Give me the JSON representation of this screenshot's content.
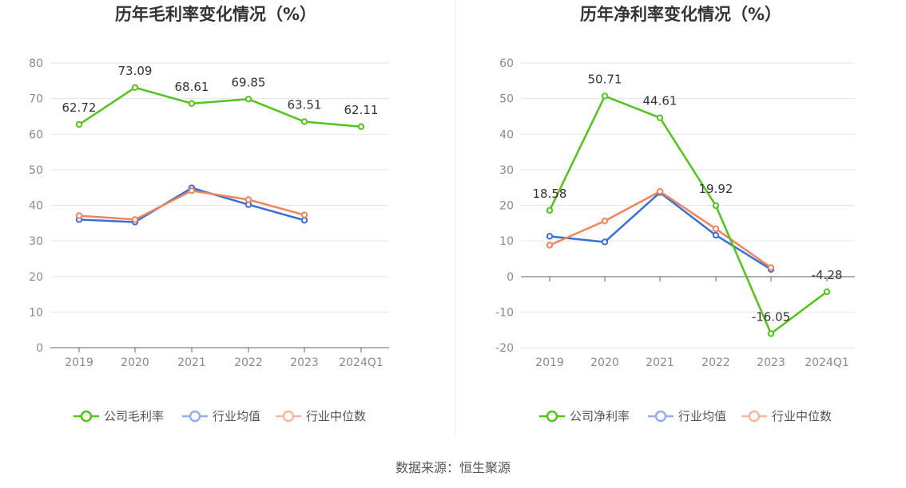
{
  "source_label": "数据来源：恒生聚源",
  "chart_data": [
    {
      "type": "line",
      "title": "历年毛利率变化情况（%）",
      "categories": [
        "2019",
        "2020",
        "2021",
        "2022",
        "2023",
        "2024Q1"
      ],
      "ylim": [
        0,
        80
      ],
      "yticks": [
        0,
        10,
        20,
        30,
        40,
        50,
        60,
        70,
        80
      ],
      "grid": true,
      "legend": "bottom",
      "series": [
        {
          "name": "公司毛利率",
          "color": "#52c41a",
          "values": [
            62.72,
            73.09,
            68.61,
            69.85,
            63.51,
            62.11
          ],
          "show_labels": true
        },
        {
          "name": "行业均值",
          "color": "#3b6fd8",
          "values": [
            36.0,
            35.3,
            44.9,
            40.2,
            35.8,
            null
          ],
          "show_labels": false
        },
        {
          "name": "行业中位数",
          "color": "#f0845a",
          "values": [
            37.1,
            36.0,
            44.1,
            41.6,
            37.3,
            null
          ],
          "show_labels": false
        }
      ]
    },
    {
      "type": "line",
      "title": "历年净利率变化情况（%）",
      "categories": [
        "2019",
        "2020",
        "2021",
        "2022",
        "2023",
        "2024Q1"
      ],
      "ylim": [
        -20,
        60
      ],
      "yticks": [
        -20,
        -10,
        0,
        10,
        20,
        30,
        40,
        50,
        60
      ],
      "grid": true,
      "legend": "bottom",
      "series": [
        {
          "name": "公司净利率",
          "color": "#52c41a",
          "values": [
            18.58,
            50.71,
            44.61,
            19.92,
            -16.05,
            -4.28
          ],
          "show_labels": true
        },
        {
          "name": "行业均值",
          "color": "#3b6fd8",
          "values": [
            11.3,
            9.7,
            23.6,
            11.6,
            2.0,
            null
          ],
          "show_labels": false
        },
        {
          "name": "行业中位数",
          "color": "#f0845a",
          "values": [
            8.8,
            15.6,
            23.9,
            13.4,
            2.5,
            null
          ],
          "show_labels": false
        }
      ]
    }
  ]
}
